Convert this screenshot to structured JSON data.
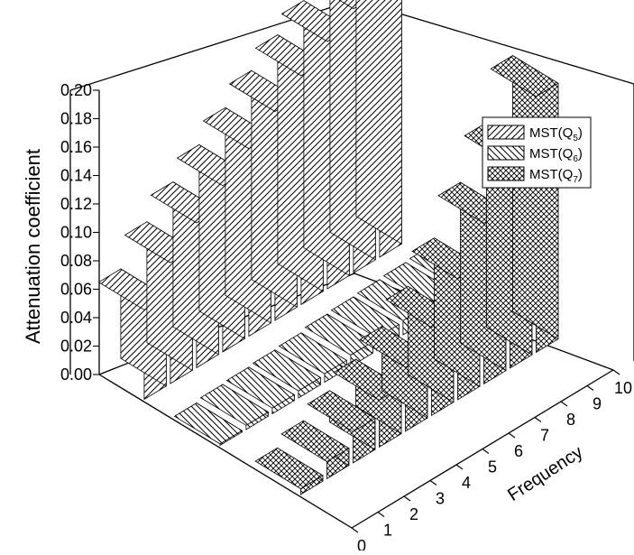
{
  "chart_data": {
    "type": "3d-bar",
    "title": "",
    "xlabel": "Frequency",
    "ylabel": "Attenuation coefficient",
    "ylim": [
      0,
      0.2
    ],
    "y_ticks": [
      "0.00",
      "0.02",
      "0.04",
      "0.06",
      "0.08",
      "0.10",
      "0.12",
      "0.14",
      "0.16",
      "0.18",
      "0.20"
    ],
    "x_ticks": [
      "0",
      "1",
      "2",
      "3",
      "4",
      "5",
      "6",
      "7",
      "8",
      "9",
      "10"
    ],
    "legend_position": "top-right",
    "x": [
      1,
      2,
      3,
      4,
      5,
      6,
      7,
      8,
      9,
      10
    ],
    "series": [
      {
        "name": "MST(Q",
        "sub": "5",
        "suffix": ")",
        "pattern": "diagonal-hatch",
        "values": [
          0.063,
          0.085,
          0.102,
          0.117,
          0.132,
          0.147,
          0.161,
          0.174,
          0.186,
          0.197
        ]
      },
      {
        "name": "MST(Q",
        "sub": "6",
        "suffix": ")",
        "pattern": "back-diagonal-hatch",
        "values": [
          0.001,
          0.003,
          0.004,
          0.005,
          0.006,
          0.008,
          0.009,
          0.01,
          0.011,
          0.012
        ]
      },
      {
        "name": "MST(Q",
        "sub": "7",
        "suffix": ")",
        "pattern": "crosshatch",
        "values": [
          0.004,
          0.012,
          0.022,
          0.033,
          0.045,
          0.062,
          0.085,
          0.113,
          0.144,
          0.18
        ]
      }
    ]
  }
}
